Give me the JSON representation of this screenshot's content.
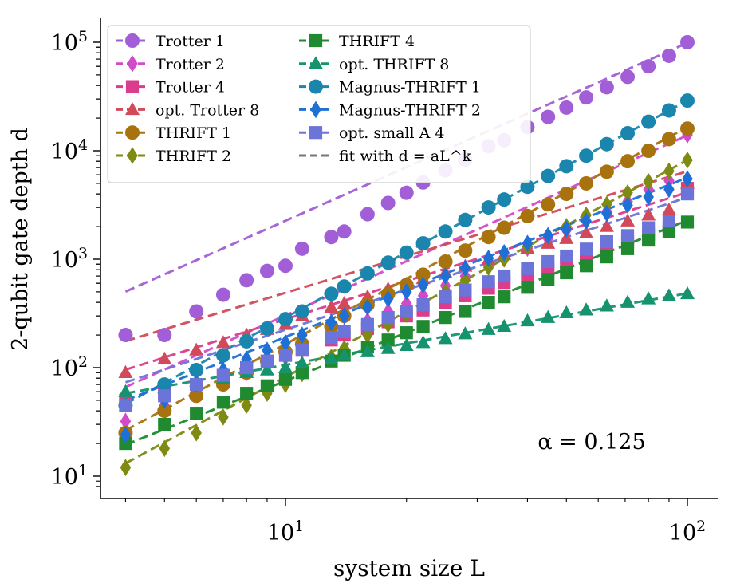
{
  "chart_data": {
    "type": "scatter",
    "xlabel": "system size L",
    "ylabel": "2-qubit gate depth d",
    "x_scale": "log",
    "y_scale": "log",
    "xlim": [
      3.4,
      120
    ],
    "ylim": [
      7.5,
      160000
    ],
    "x_ticks": [
      {
        "value": 10,
        "label": "10^1"
      },
      {
        "value": 100,
        "label": "10^2"
      }
    ],
    "y_ticks": [
      {
        "value": 10,
        "label": "10^1"
      },
      {
        "value": 100,
        "label": "10^2"
      },
      {
        "value": 1000,
        "label": "10^3"
      },
      {
        "value": 10000,
        "label": "10^4"
      },
      {
        "value": 100000,
        "label": "10^5"
      }
    ],
    "annotation": "α = 0.125",
    "legend_position": "top-left",
    "legend_fit_label": "fit with d = aL^k",
    "x": [
      4,
      5,
      6,
      7,
      8,
      9,
      10,
      11,
      13,
      14,
      16,
      18,
      20,
      22,
      25,
      28,
      32,
      35,
      40,
      45,
      50,
      56,
      63,
      71,
      80,
      90,
      100
    ],
    "series": [
      {
        "name": "Trotter 1",
        "color": "#a25ed6",
        "marker": "circle",
        "a": 51.8,
        "k": 1.64,
        "values": [
          200,
          200,
          330,
          470,
          640,
          780,
          870,
          1250,
          1600,
          1800,
          2600,
          3300,
          4100,
          5100,
          6600,
          8300,
          11000,
          12500,
          16500,
          20500,
          25000,
          31000,
          38500,
          48000,
          60000,
          75000,
          100000
        ]
      },
      {
        "name": "Trotter 2",
        "color": "#d24ac8",
        "marker": "diamond",
        "a": 6.64,
        "k": 1.66,
        "values": [
          32,
          45,
          58,
          75,
          90,
          108,
          125,
          145,
          200,
          215,
          270,
          330,
          390,
          460,
          570,
          700,
          880,
          1020,
          1260,
          1550,
          1850,
          2250,
          2750,
          3400,
          4400,
          5300,
          14000
        ]
      },
      {
        "name": "Trotter 4",
        "color": "#dc3c8c",
        "marker": "square",
        "a": 18.9,
        "k": 1.17,
        "values": [
          50,
          58,
          70,
          85,
          100,
          115,
          130,
          145,
          180,
          200,
          230,
          265,
          300,
          340,
          400,
          460,
          540,
          610,
          720,
          830,
          940,
          1080,
          1250,
          1450,
          1700,
          1950,
          4500
        ]
      },
      {
        "name": "opt. Trotter 8",
        "color": "#d24a5a",
        "marker": "triangle",
        "a": 37.2,
        "k": 1.12,
        "values": [
          90,
          120,
          145,
          170,
          200,
          225,
          250,
          300,
          360,
          390,
          450,
          530,
          590,
          660,
          750,
          860,
          1000,
          1100,
          1260,
          1400,
          1550,
          1750,
          2000,
          2250,
          2550,
          2850,
          5000
        ]
      },
      {
        "name": "THRIFT 1",
        "color": "#a8730f",
        "marker": "circle",
        "a": 1.65,
        "k": 2.0,
        "values": [
          25,
          40,
          55,
          70,
          90,
          115,
          140,
          165,
          240,
          300,
          380,
          480,
          580,
          720,
          950,
          1200,
          1600,
          1950,
          2500,
          3200,
          4000,
          5000,
          6400,
          8000,
          10000,
          12800,
          16000
        ]
      },
      {
        "name": "THRIFT 2",
        "color": "#7e8a12",
        "marker": "diamond",
        "a": 0.82,
        "k": 2.0,
        "values": [
          12,
          18,
          25,
          35,
          45,
          58,
          70,
          88,
          125,
          150,
          200,
          250,
          310,
          380,
          500,
          640,
          840,
          1000,
          1300,
          1650,
          2000,
          2550,
          3200,
          4100,
          5200,
          6500,
          8200
        ]
      },
      {
        "name": "THRIFT 4",
        "color": "#1f8a2f",
        "marker": "square",
        "a": 2.5,
        "k": 1.48,
        "values": [
          20,
          30,
          38,
          48,
          58,
          68,
          78,
          90,
          115,
          130,
          155,
          180,
          210,
          240,
          290,
          330,
          400,
          450,
          550,
          650,
          750,
          870,
          1050,
          1250,
          1500,
          1800,
          2200
        ]
      },
      {
        "name": "opt. THRIFT 8",
        "color": "#14936e",
        "marker": "triangle",
        "a": 23.2,
        "k": 0.66,
        "values": [
          60,
          65,
          75,
          80,
          90,
          95,
          100,
          110,
          120,
          130,
          140,
          150,
          160,
          170,
          185,
          205,
          225,
          240,
          270,
          290,
          320,
          340,
          370,
          400,
          430,
          460,
          480
        ]
      },
      {
        "name": "Magnus-THRIFT 1",
        "color": "#1a86ad",
        "marker": "circle",
        "a": 2.9,
        "k": 2.0,
        "values": [
          45,
          70,
          95,
          130,
          175,
          230,
          280,
          330,
          480,
          560,
          740,
          930,
          1150,
          1400,
          1800,
          2300,
          3000,
          3550,
          4650,
          5850,
          7200,
          9000,
          11500,
          14500,
          18500,
          23500,
          29000
        ]
      },
      {
        "name": "Magnus-THRIFT 2",
        "color": "#1e6fd6",
        "marker": "diamond",
        "a": 6.5,
        "k": 1.47,
        "values": [
          24,
          50,
          70,
          95,
          120,
          145,
          170,
          200,
          260,
          300,
          360,
          430,
          500,
          580,
          700,
          830,
          1020,
          1150,
          1400,
          1650,
          1900,
          2250,
          2650,
          3150,
          3750,
          4400,
          5500
        ]
      },
      {
        "name": "opt. small A 4",
        "color": "#6b74d9",
        "marker": "square",
        "a": 13.5,
        "k": 1.22,
        "values": [
          45,
          55,
          70,
          85,
          100,
          115,
          130,
          145,
          190,
          215,
          250,
          290,
          330,
          380,
          450,
          520,
          620,
          700,
          820,
          950,
          1070,
          1240,
          1450,
          1650,
          1950,
          2250,
          4000
        ]
      }
    ]
  }
}
